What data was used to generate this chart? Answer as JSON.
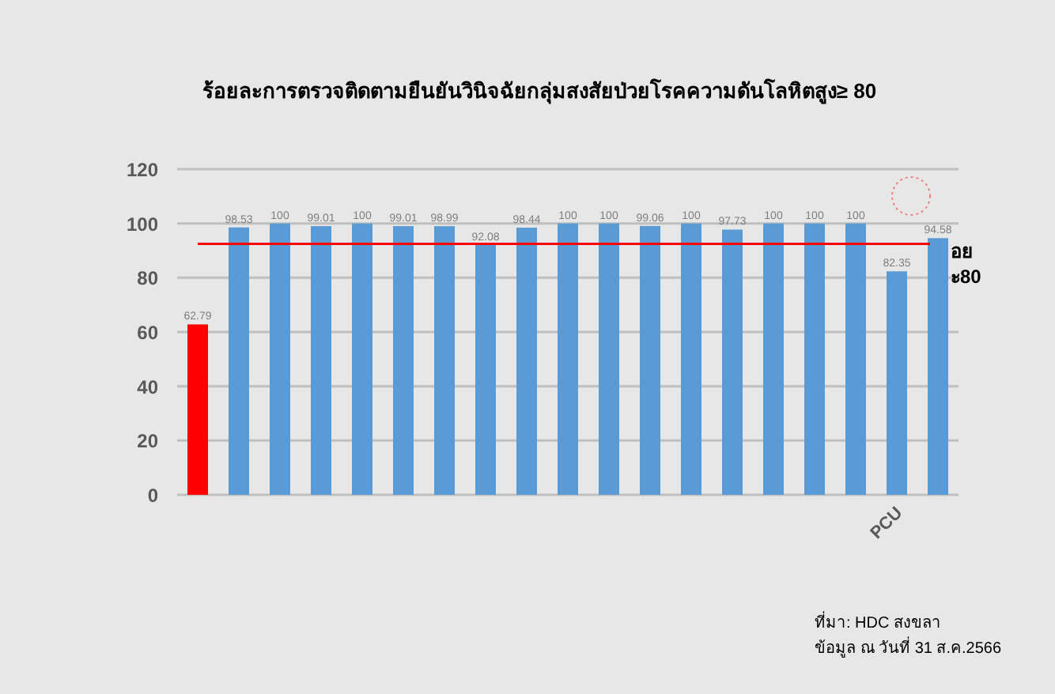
{
  "chart_data": {
    "type": "bar",
    "title": "ร้อยละการตรวจติดตามยืนยันวินิจฉัยกลุ่มสงสัยป่วยโรคความดันโลหิตสูง≥ 80",
    "categories": [
      null,
      null,
      null,
      null,
      null,
      null,
      null,
      null,
      null,
      null,
      null,
      null,
      null,
      null,
      null,
      null,
      null,
      "PCU",
      null
    ],
    "values": [
      62.79,
      98.53,
      100,
      99.01,
      100,
      99.01,
      98.99,
      92.08,
      98.44,
      100,
      100,
      99.06,
      100,
      97.73,
      100,
      100,
      100,
      82.35,
      94.58
    ],
    "colors": [
      "#ff0000",
      "#5b9bd5",
      "#5b9bd5",
      "#5b9bd5",
      "#5b9bd5",
      "#5b9bd5",
      "#5b9bd5",
      "#5b9bd5",
      "#5b9bd5",
      "#5b9bd5",
      "#5b9bd5",
      "#5b9bd5",
      "#5b9bd5",
      "#5b9bd5",
      "#5b9bd5",
      "#5b9bd5",
      "#5b9bd5",
      "#5b9bd5",
      "#5b9bd5"
    ],
    "ylim": [
      0,
      120
    ],
    "yticks": [
      0,
      20,
      40,
      60,
      80,
      100,
      120
    ],
    "grid": "y",
    "data_labels": true,
    "ref_lines": [
      {
        "axis": "y",
        "value": 92.5,
        "label": "อย\nะ80",
        "color": "#ff0000"
      }
    ],
    "annotations": [
      "ที่มา: HDC สงขลา",
      "ข้อมูล ณ วันที่ 31 ส.ค.2566"
    ]
  }
}
